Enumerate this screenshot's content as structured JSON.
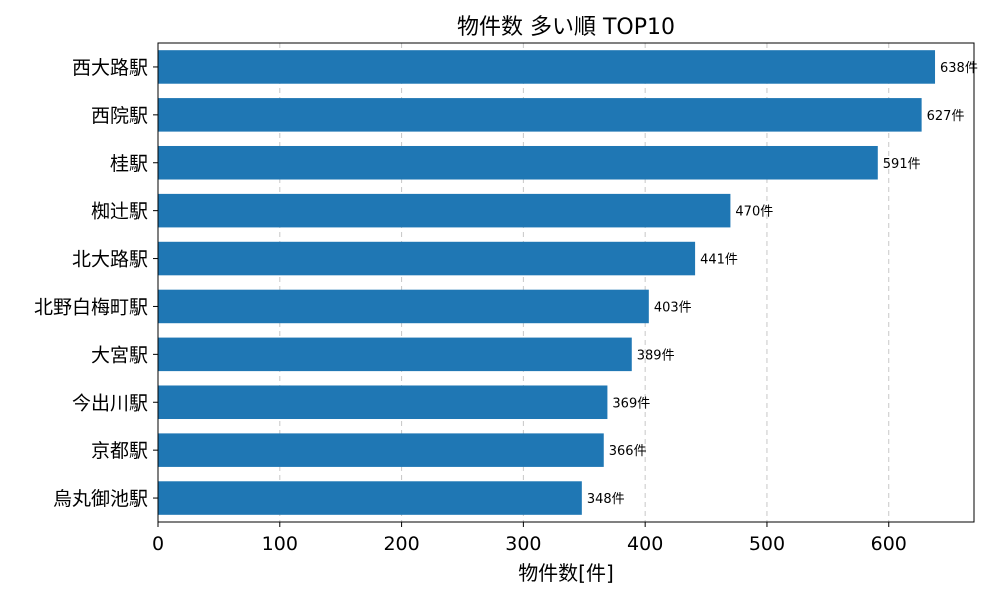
{
  "chart_data": {
    "type": "bar",
    "orientation": "horizontal",
    "title": "物件数 多い順 TOP10",
    "xlabel": "物件数[件]",
    "ylabel": "",
    "xlim": [
      0,
      670
    ],
    "xticks": [
      0,
      100,
      200,
      300,
      400,
      500,
      600
    ],
    "grid": "x-dashed",
    "label_suffix": "件",
    "bar_color": "#1f77b4",
    "categories": [
      "西大路駅",
      "西院駅",
      "桂駅",
      "椥辻駅",
      "北大路駅",
      "北野白梅町駅",
      "大宮駅",
      "今出川駅",
      "京都駅",
      "烏丸御池駅"
    ],
    "values": [
      638,
      627,
      591,
      470,
      441,
      403,
      389,
      369,
      366,
      348
    ],
    "data_labels": [
      "638件",
      "627件",
      "591件",
      "470件",
      "441件",
      "403件",
      "389件",
      "369件",
      "366件",
      "348件"
    ]
  }
}
